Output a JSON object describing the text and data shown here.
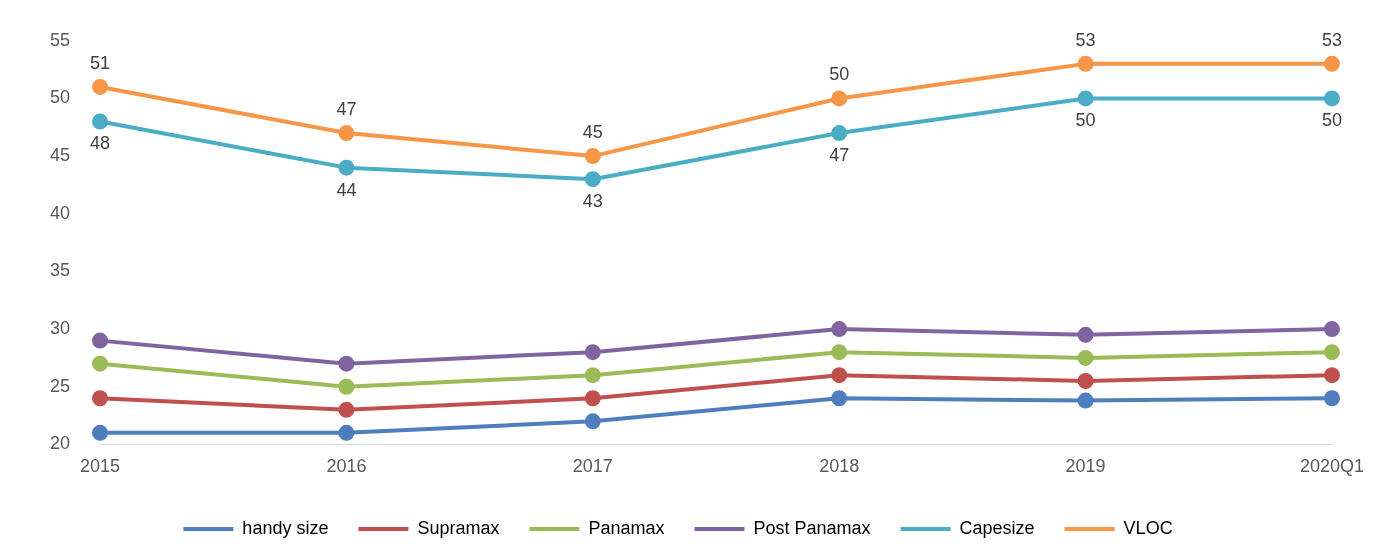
{
  "chart_data": {
    "type": "line",
    "categories": [
      "2015",
      "2016",
      "2017",
      "2018",
      "2019",
      "2020Q1"
    ],
    "ylim": [
      20,
      55
    ],
    "yticks": [
      20,
      25,
      30,
      35,
      40,
      45,
      50,
      55
    ],
    "grid": false,
    "legend": "bottom",
    "marker": "circle",
    "line_style": "solid",
    "series": [
      {
        "name": "handy size",
        "color": "#4e7ebd",
        "values": [
          21,
          21,
          22,
          24,
          23.8,
          24
        ]
      },
      {
        "name": "Supramax",
        "color": "#c0504d",
        "values": [
          24,
          23,
          24,
          26,
          25.5,
          26
        ]
      },
      {
        "name": "Panamax",
        "color": "#9bbb59",
        "values": [
          27,
          25,
          26,
          28,
          27.5,
          28
        ]
      },
      {
        "name": "Post Panamax",
        "color": "#8064a2",
        "values": [
          29,
          27,
          28,
          30,
          29.5,
          30
        ]
      },
      {
        "name": "Capesize",
        "color": "#4bacc6",
        "values": [
          48,
          44,
          43,
          47,
          50,
          50
        ],
        "value_labels": [
          "48",
          "44",
          "43",
          "47",
          "50",
          "50"
        ]
      },
      {
        "name": "VLOC",
        "color": "#f79646",
        "values": [
          51,
          47,
          45,
          50,
          53,
          53
        ],
        "value_labels": [
          "51",
          "47",
          "45",
          "50",
          "53",
          "53"
        ]
      }
    ]
  }
}
